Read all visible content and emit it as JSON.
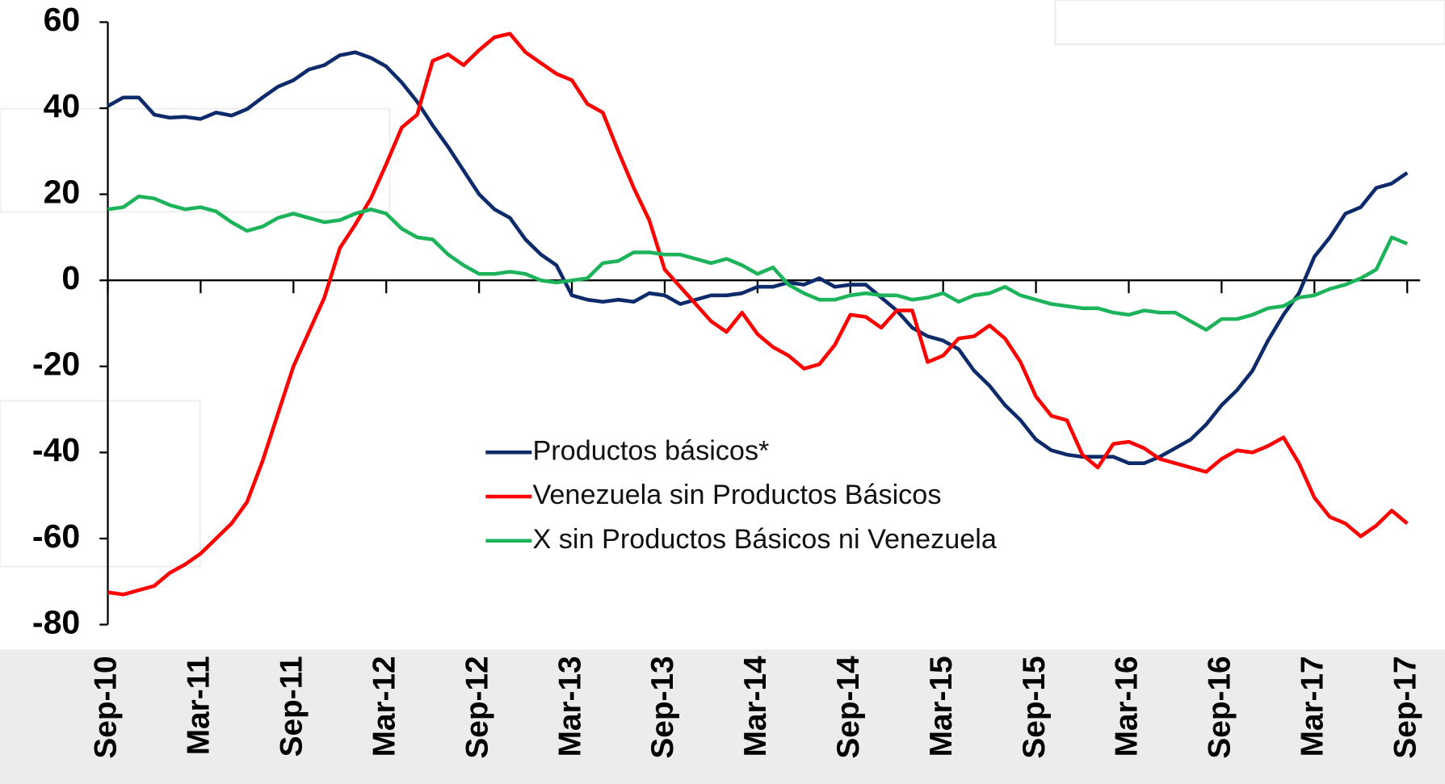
{
  "chart_data": {
    "type": "line",
    "categories": [
      "Sep-10",
      null,
      null,
      null,
      null,
      null,
      "Mar-11",
      null,
      null,
      null,
      null,
      null,
      "Sep-11",
      null,
      null,
      null,
      null,
      null,
      "Mar-12",
      null,
      null,
      null,
      null,
      null,
      "Sep-12",
      null,
      null,
      null,
      null,
      null,
      "Mar-13",
      null,
      null,
      null,
      null,
      null,
      "Sep-13",
      null,
      null,
      null,
      null,
      null,
      "Mar-14",
      null,
      null,
      null,
      null,
      null,
      "Sep-14",
      null,
      null,
      null,
      null,
      null,
      "Mar-15",
      null,
      null,
      null,
      null,
      null,
      "Sep-15",
      null,
      null,
      null,
      null,
      null,
      "Mar-16",
      null,
      null,
      null,
      null,
      null,
      "Sep-16",
      null,
      null,
      null,
      null,
      null,
      "Mar-17",
      null,
      null,
      null,
      null,
      null,
      "Sep-17"
    ],
    "series": [
      {
        "name": "Productos básicos*",
        "color": "#0d2a6b",
        "values": [
          40.5,
          42.5,
          42.5,
          38.5,
          37.8,
          38,
          37.5,
          39,
          38.3,
          39.8,
          42.5,
          45,
          46.5,
          49,
          50,
          52.3,
          53,
          51.7,
          49.7,
          46,
          41.5,
          36,
          31,
          25.5,
          20,
          16.5,
          14.5,
          9.5,
          6,
          3.5,
          -3.5,
          -4.5,
          -5,
          -4.5,
          -5,
          -3,
          -3.5,
          -5.5,
          -4.5,
          -3.5,
          -3.5,
          -3,
          -1.5,
          -1.5,
          -0.5,
          -1,
          0.5,
          -1.5,
          -1,
          -1,
          -4,
          -7,
          -11,
          -13,
          -14,
          -16,
          -21,
          -24.5,
          -29,
          -32.5,
          -37,
          -39.5,
          -40.5,
          -41,
          -41,
          -41,
          -42.5,
          -42.5,
          -41,
          -39,
          -37,
          -33.5,
          -29,
          -25.5,
          -21,
          -14,
          -8,
          -3,
          5.5,
          10,
          15.5,
          17,
          21.5,
          22.5,
          25
        ]
      },
      {
        "name": "Venezuela sin Productos Básicos",
        "color": "#ff0000",
        "values": [
          -72.5,
          -73,
          -72,
          -71,
          -68,
          -66,
          -63.5,
          -60,
          -56.5,
          -51.5,
          -42,
          -31,
          -20,
          -12,
          -4,
          7.5,
          13,
          19,
          27,
          35.5,
          38.5,
          51,
          52.5,
          50,
          53.5,
          56.5,
          57.3,
          53,
          50.5,
          48,
          46.5,
          41,
          39,
          30,
          21.5,
          14,
          2.5,
          -1.5,
          -5.5,
          -9.5,
          -12,
          -7.5,
          -12.5,
          -15.5,
          -17.5,
          -20.5,
          -19.5,
          -15,
          -8,
          -8.5,
          -11,
          -7,
          -7,
          -19,
          -17.5,
          -13.5,
          -13,
          -10.5,
          -13.5,
          -19,
          -27,
          -31.5,
          -32.5,
          -40.5,
          -43.5,
          -38,
          -37.5,
          -39,
          -41.5,
          -42.5,
          -43.5,
          -44.5,
          -41.5,
          -39.5,
          -40,
          -38.5,
          -36.5,
          -42.5,
          -50.5,
          -55,
          -56.5,
          -59.5,
          -57,
          -53.5,
          -56.5
        ]
      },
      {
        "name": "X sin Productos Básicos ni Venezuela",
        "color": "#1db35a",
        "values": [
          16.5,
          17,
          19.5,
          19,
          17.5,
          16.5,
          17,
          16,
          13.5,
          11.5,
          12.5,
          14.5,
          15.5,
          14.5,
          13.5,
          14,
          15.5,
          16.5,
          15.5,
          12,
          10,
          9.5,
          6,
          3.5,
          1.5,
          1.5,
          2,
          1.5,
          0,
          -0.5,
          0,
          0.5,
          4,
          4.5,
          6.5,
          6.5,
          6,
          6,
          5,
          4,
          5,
          3.5,
          1.5,
          3,
          -1,
          -3,
          -4.5,
          -4.5,
          -3.5,
          -3,
          -3.5,
          -3.5,
          -4.5,
          -4,
          -3,
          -5,
          -3.5,
          -3,
          -1.5,
          -3.5,
          -4.5,
          -5.5,
          -6,
          -6.5,
          -6.5,
          -7.5,
          -8,
          -7,
          -7.5,
          -7.5,
          -9.5,
          -11.5,
          -9,
          -9,
          -8,
          -6.5,
          -6,
          -4,
          -3.5,
          -2,
          -1,
          0.5,
          2.5,
          10,
          8.5
        ]
      }
    ],
    "ylim": [
      -80,
      60
    ],
    "yticks": [
      60,
      40,
      20,
      0,
      -20,
      -40,
      -60,
      -80
    ]
  }
}
